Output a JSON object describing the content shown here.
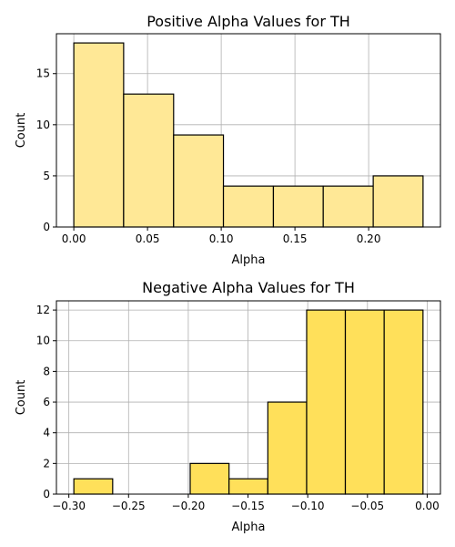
{
  "chart_data": [
    {
      "type": "bar",
      "title": "Positive Alpha Values for TH",
      "xlabel": "Alpha",
      "ylabel": "Count",
      "bins": [
        {
          "start": 0.0,
          "end": 0.0338,
          "count": 18
        },
        {
          "start": 0.0338,
          "end": 0.0677,
          "count": 13
        },
        {
          "start": 0.0677,
          "end": 0.1015,
          "count": 9
        },
        {
          "start": 0.1015,
          "end": 0.1354,
          "count": 4
        },
        {
          "start": 0.1354,
          "end": 0.1692,
          "count": 4
        },
        {
          "start": 0.1692,
          "end": 0.2031,
          "count": 4
        },
        {
          "start": 0.2031,
          "end": 0.2369,
          "count": 5
        }
      ],
      "xlim": [
        -0.0118,
        0.2487
      ],
      "ylim": [
        0,
        18.9
      ],
      "xticks": [
        0.0,
        0.05,
        0.1,
        0.15,
        0.2
      ],
      "xtick_labels": [
        "0.00",
        "0.05",
        "0.10",
        "0.15",
        "0.20"
      ],
      "yticks": [
        0,
        5,
        10,
        15
      ],
      "ytick_labels": [
        "0",
        "5",
        "10",
        "15"
      ],
      "grid": true,
      "bar_color": "#ffe896",
      "edge_color": "#000000"
    },
    {
      "type": "bar",
      "title": "Negative Alpha Values for TH",
      "xlabel": "Alpha",
      "ylabel": "Count",
      "bins": [
        {
          "start": -0.2958,
          "end": -0.2633,
          "count": 1
        },
        {
          "start": -0.2633,
          "end": -0.2308,
          "count": 0
        },
        {
          "start": -0.2308,
          "end": -0.1984,
          "count": 0
        },
        {
          "start": -0.1984,
          "end": -0.1659,
          "count": 2
        },
        {
          "start": -0.1659,
          "end": -0.1334,
          "count": 1
        },
        {
          "start": -0.1334,
          "end": -0.1009,
          "count": 6
        },
        {
          "start": -0.1009,
          "end": -0.0685,
          "count": 12
        },
        {
          "start": -0.0685,
          "end": -0.036,
          "count": 12
        },
        {
          "start": -0.036,
          "end": -0.0035,
          "count": 12
        }
      ],
      "xlim": [
        -0.3104,
        0.0111
      ],
      "ylim": [
        0,
        12.6
      ],
      "xticks": [
        -0.3,
        -0.25,
        -0.2,
        -0.15,
        -0.1,
        -0.05,
        0.0
      ],
      "xtick_labels": [
        "−0.30",
        "−0.25",
        "−0.20",
        "−0.15",
        "−0.10",
        "−0.05",
        "0.00"
      ],
      "yticks": [
        0,
        2,
        4,
        6,
        8,
        10,
        12
      ],
      "ytick_labels": [
        "0",
        "2",
        "4",
        "6",
        "8",
        "10",
        "12"
      ],
      "grid": true,
      "bar_color": "#ffe05a",
      "edge_color": "#000000"
    }
  ]
}
